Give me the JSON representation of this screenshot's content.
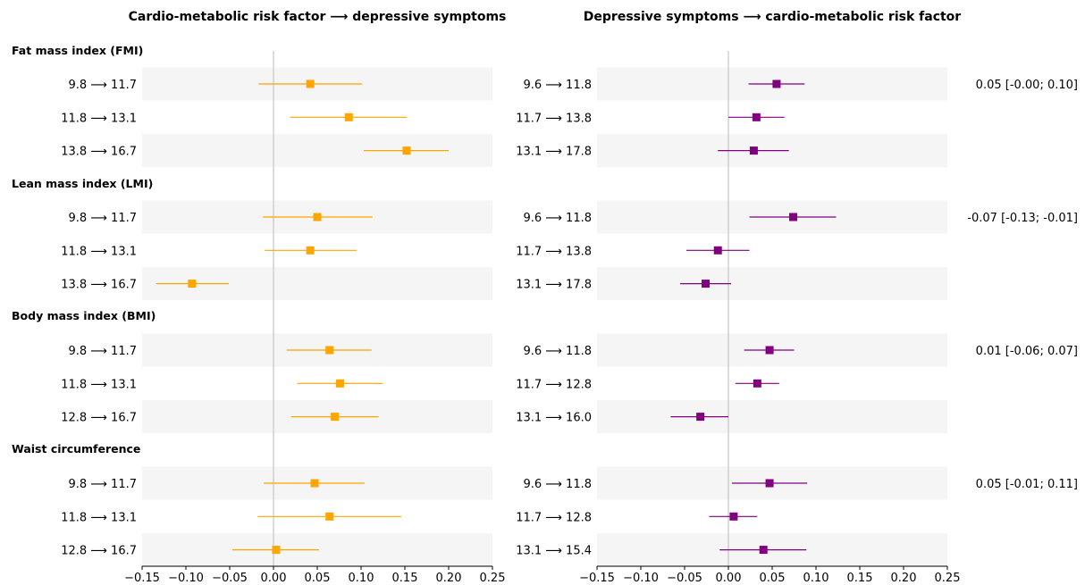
{
  "chart_data": {
    "type": "forest",
    "panels": [
      {
        "title": "Cardio-metabolic risk factor ⟶ depressive symptoms",
        "color": "#FFA500",
        "xlim": [
          -0.15,
          0.25
        ],
        "xticks": [
          -0.15,
          -0.1,
          -0.05,
          0.0,
          0.05,
          0.1,
          0.15,
          0.2,
          0.25
        ],
        "xtick_labels": [
          "−0.15",
          "−0.10",
          "−0.05",
          "0.00",
          "0.05",
          "0.10",
          "0.15",
          "0.20",
          "0.25"
        ],
        "groups": [
          {
            "rows": [
              {
                "label": "9.8 ⟶ 11.7",
                "est": 0.042,
                "lo": -0.017,
                "hi": 0.101
              },
              {
                "label": "11.8 ⟶ 13.1",
                "est": 0.086,
                "lo": 0.019,
                "hi": 0.152
              },
              {
                "label": "13.8 ⟶ 16.7",
                "est": 0.152,
                "lo": 0.103,
                "hi": 0.2
              }
            ]
          },
          {
            "rows": [
              {
                "label": "9.8 ⟶ 11.7",
                "est": 0.05,
                "lo": -0.012,
                "hi": 0.113
              },
              {
                "label": "11.8 ⟶ 13.1",
                "est": 0.042,
                "lo": -0.01,
                "hi": 0.095
              },
              {
                "label": "13.8 ⟶ 16.7",
                "est": -0.093,
                "lo": -0.134,
                "hi": -0.051
              }
            ]
          },
          {
            "rows": [
              {
                "label": "9.8 ⟶ 11.7",
                "est": 0.064,
                "lo": 0.015,
                "hi": 0.112
              },
              {
                "label": "11.8 ⟶ 13.1",
                "est": 0.076,
                "lo": 0.027,
                "hi": 0.125
              },
              {
                "label": "12.8 ⟶ 16.7",
                "est": 0.07,
                "lo": 0.02,
                "hi": 0.12
              }
            ]
          },
          {
            "rows": [
              {
                "label": "9.8 ⟶ 11.7",
                "est": 0.047,
                "lo": -0.011,
                "hi": 0.104
              },
              {
                "label": "11.8 ⟶ 13.1",
                "est": 0.064,
                "lo": -0.018,
                "hi": 0.146
              },
              {
                "label": "12.8 ⟶ 16.7",
                "est": 0.003,
                "lo": -0.047,
                "hi": 0.052
              }
            ]
          }
        ]
      },
      {
        "title": "Depressive symptoms ⟶ cardio-metabolic risk factor",
        "color": "#800080",
        "xlim": [
          -0.15,
          0.25
        ],
        "xticks": [
          -0.15,
          -0.1,
          -0.05,
          0.0,
          0.05,
          0.1,
          0.15,
          0.2,
          0.25
        ],
        "xtick_labels": [
          "−0.15",
          "−0.10",
          "−0.05",
          "0.00",
          "0.05",
          "0.10",
          "0.15",
          "0.20",
          "0.25"
        ],
        "groups": [
          {
            "rows": [
              {
                "label": "9.6 ⟶ 11.8",
                "est": 0.055,
                "lo": 0.023,
                "hi": 0.087
              },
              {
                "label": "11.7 ⟶ 13.8",
                "est": 0.032,
                "lo": 0.0,
                "hi": 0.064
              },
              {
                "label": "13.1 ⟶ 17.8",
                "est": 0.029,
                "lo": -0.012,
                "hi": 0.069
              }
            ]
          },
          {
            "rows": [
              {
                "label": "9.6 ⟶ 11.8",
                "est": 0.074,
                "lo": 0.024,
                "hi": 0.123
              },
              {
                "label": "11.7 ⟶ 13.8",
                "est": -0.012,
                "lo": -0.048,
                "hi": 0.024
              },
              {
                "label": "13.1 ⟶ 17.8",
                "est": -0.026,
                "lo": -0.055,
                "hi": 0.003
              }
            ]
          },
          {
            "rows": [
              {
                "label": "9.6 ⟶ 11.8",
                "est": 0.047,
                "lo": 0.018,
                "hi": 0.075
              },
              {
                "label": "11.7 ⟶ 12.8",
                "est": 0.033,
                "lo": 0.008,
                "hi": 0.058
              },
              {
                "label": "13.1 ⟶ 16.0",
                "est": -0.032,
                "lo": -0.066,
                "hi": 0.0
              }
            ]
          },
          {
            "rows": [
              {
                "label": "9.6 ⟶ 11.8",
                "est": 0.047,
                "lo": 0.004,
                "hi": 0.09
              },
              {
                "label": "11.7 ⟶ 12.8",
                "est": 0.006,
                "lo": -0.022,
                "hi": 0.033
              },
              {
                "label": "13.1 ⟶ 15.4",
                "est": 0.04,
                "lo": -0.01,
                "hi": 0.089
              }
            ]
          }
        ]
      }
    ],
    "group_labels": [
      "Fat mass index (FMI)",
      "Lean mass index (LMI)",
      "Body mass index (BMI)",
      "Waist circumference"
    ],
    "side_labels": [
      "0.05 [-0.00; 0.10]",
      "-0.07 [-0.13; -0.01]",
      "0.01 [-0.06; 0.07]",
      "0.05 [-0.01; 0.11]"
    ],
    "colors": {
      "panel_left": "#FFA500",
      "panel_right": "#800080",
      "row_shade": "#F5F5F5",
      "zero_line": "#BBBBBB"
    }
  }
}
